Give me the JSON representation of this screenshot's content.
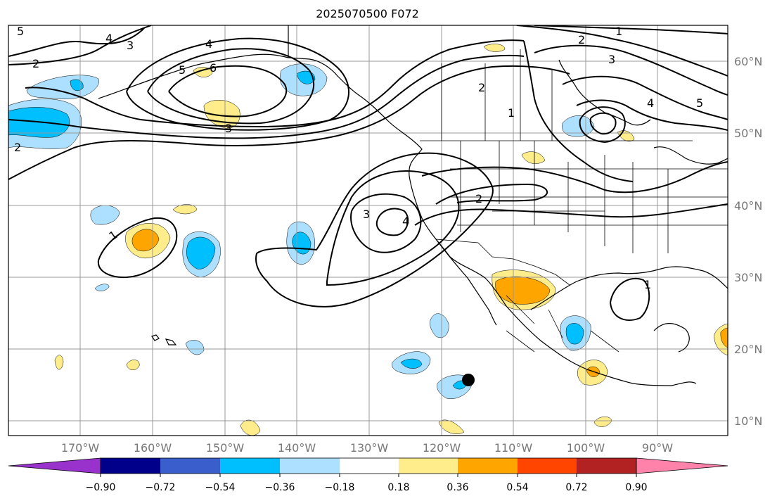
{
  "title": "2025070500 F072",
  "lat_labels": [
    "60°N",
    "50°N",
    "40°N",
    "30°N",
    "20°N",
    "10°N"
  ],
  "lon_labels": [
    "170°W",
    "160°W",
    "150°W",
    "140°W",
    "130°W",
    "120°W",
    "110°W",
    "100°W",
    "90°W"
  ],
  "colorbar": {
    "tick_labels": [
      "−0.90",
      "−0.72",
      "−0.54",
      "−0.36",
      "−0.18",
      "0.18",
      "0.36",
      "0.54",
      "0.72",
      "0.90"
    ],
    "colors": [
      "#9932CC",
      "#00008B",
      "#3A5FCD",
      "#00BFFF",
      "#ADDFFF",
      "#FFFFFF",
      "#FFEC8B",
      "#FFA500",
      "#FF4500",
      "#B22222",
      "#FF82AB"
    ]
  },
  "contour_labels": [
    "1",
    "2",
    "3",
    "4",
    "5",
    "6",
    "4",
    "5",
    "3",
    "2",
    "1",
    "2",
    "4",
    "5",
    "2",
    "1",
    "3",
    "4",
    "2",
    "3",
    "1"
  ],
  "marker": {
    "label": "storm-center",
    "color": "#000000"
  }
}
